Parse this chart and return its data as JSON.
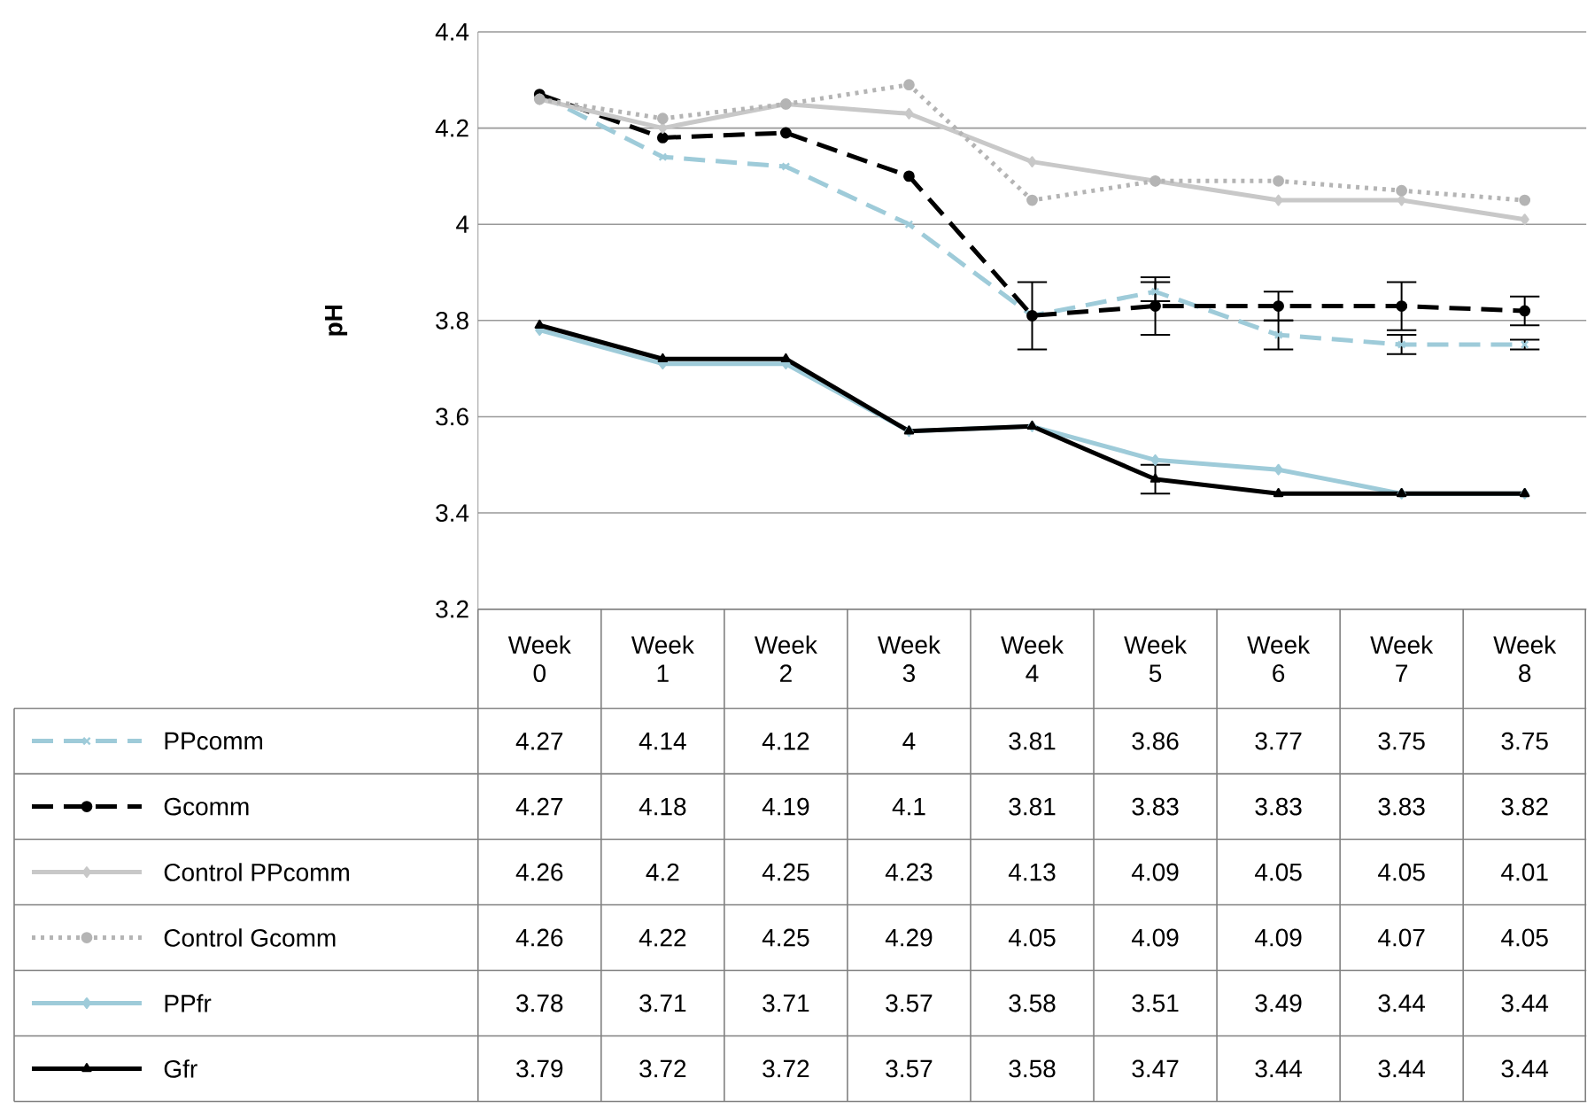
{
  "chart_data": {
    "type": "line",
    "ylabel": "pH",
    "categories": [
      "Week 0",
      "Week 1",
      "Week 2",
      "Week 3",
      "Week 4",
      "Week 5",
      "Week 6",
      "Week 7",
      "Week 8"
    ],
    "ylim": [
      3.2,
      4.4
    ],
    "yticks": [
      3.2,
      3.4,
      3.6,
      3.8,
      4,
      4.2,
      4.4
    ],
    "grid": "y",
    "data_labels": true,
    "legend": "bottom left",
    "series": [
      {
        "name": "PPcomm",
        "color": "#9ecbd9",
        "marker": "cross",
        "line_style": "dashed",
        "values": [
          4.27,
          4.14,
          4.12,
          4,
          3.81,
          3.86,
          3.77,
          3.75,
          3.75
        ],
        "errors": [
          null,
          null,
          null,
          null,
          null,
          0.02,
          0.03,
          0.02,
          0.01
        ]
      },
      {
        "name": "Gcomm",
        "color": "#000000",
        "marker": "circle",
        "line_style": "dashed",
        "values": [
          4.27,
          4.18,
          4.19,
          4.1,
          3.81,
          3.83,
          3.83,
          3.83,
          3.82
        ],
        "errors": [
          null,
          null,
          null,
          null,
          0.07,
          0.06,
          0.03,
          0.05,
          0.03
        ]
      },
      {
        "name": "Control PPcomm",
        "color": "#c8c8c8",
        "marker": "diamond",
        "line_style": "solid",
        "values": [
          4.26,
          4.2,
          4.25,
          4.23,
          4.13,
          4.09,
          4.05,
          4.05,
          4.01
        ]
      },
      {
        "name": "Control Gcomm",
        "color": "#b4b4b4",
        "marker": "circle",
        "line_style": "dotted",
        "values": [
          4.26,
          4.22,
          4.25,
          4.29,
          4.05,
          4.09,
          4.09,
          4.07,
          4.05
        ]
      },
      {
        "name": "PPfr",
        "color": "#9ecbd9",
        "marker": "diamond",
        "line_style": "solid",
        "values": [
          3.78,
          3.71,
          3.71,
          3.57,
          3.58,
          3.51,
          3.49,
          3.44,
          3.44
        ]
      },
      {
        "name": "Gfr",
        "color": "#000000",
        "marker": "triangle",
        "line_style": "solid",
        "values": [
          3.79,
          3.72,
          3.72,
          3.57,
          3.58,
          3.47,
          3.44,
          3.44,
          3.44
        ],
        "errors": [
          null,
          null,
          null,
          null,
          null,
          0.03,
          null,
          null,
          null
        ]
      }
    ]
  }
}
